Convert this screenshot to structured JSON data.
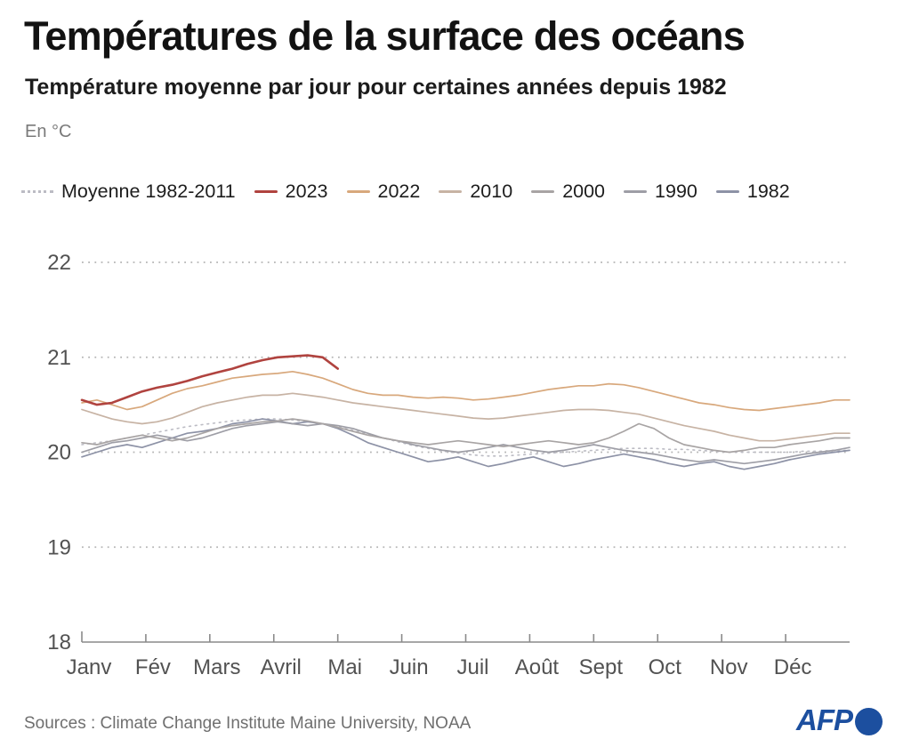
{
  "header": {
    "title": "Températures de la surface des océans",
    "subtitle": "Température moyenne par jour pour certaines années depuis 1982",
    "unit": "En °C"
  },
  "footer": {
    "sources": "Sources : Climate Change Institute Maine University, NOAA",
    "brand": "AFP"
  },
  "colors": {
    "accent_2023": "#b0433f",
    "afp_blue": "#1c4f9f",
    "grid": "#b5b5b5",
    "axis": "#8a8a8a",
    "axis_text": "#525252"
  },
  "chart_data": {
    "type": "line",
    "title": "Températures de la surface des océans",
    "unit": "°C",
    "grid": "dotted horizontal lines at 19, 20, 21, 22",
    "legend_position": "top",
    "x_axis": {
      "labels": [
        "Janv",
        "Fév",
        "Mars",
        "Avril",
        "Mai",
        "Juin",
        "Juil",
        "Août",
        "Sept",
        "Oct",
        "Nov",
        "Déc"
      ],
      "range_days": 365
    },
    "y_axis": {
      "ticks": [
        18,
        19,
        20,
        21,
        22
      ],
      "min": 18,
      "max": 22
    },
    "sampling": "weekly values, January through December",
    "series": [
      {
        "name": "Moyenne 1982-2011",
        "style": "dotted",
        "color": "#bcbcc4",
        "width": 1.6,
        "z": 0,
        "values": [
          20.08,
          20.1,
          20.12,
          20.15,
          20.18,
          20.21,
          20.24,
          20.27,
          20.29,
          20.31,
          20.33,
          20.34,
          20.35,
          20.35,
          20.34,
          20.32,
          20.3,
          20.27,
          20.23,
          20.19,
          20.15,
          20.11,
          20.07,
          20.04,
          20.01,
          19.99,
          19.97,
          19.96,
          19.96,
          19.97,
          19.98,
          19.99,
          20.0,
          20.01,
          20.02,
          20.03,
          20.04,
          20.04,
          20.04,
          20.03,
          20.03,
          20.02,
          20.01,
          20.0,
          20.0,
          20.0,
          20.0,
          20.0,
          20.01,
          20.01,
          20.02,
          20.02
        ]
      },
      {
        "name": "2023",
        "style": "solid",
        "color": "#b0433f",
        "width": 2.6,
        "z": 6,
        "values": [
          20.55,
          20.5,
          20.52,
          20.58,
          20.64,
          20.68,
          20.71,
          20.75,
          20.8,
          20.84,
          20.88,
          20.93,
          20.97,
          21.0,
          21.01,
          21.02,
          21.0,
          20.88
        ]
      },
      {
        "name": "2022",
        "style": "solid",
        "color": "#d8a87c",
        "width": 1.7,
        "z": 5,
        "values": [
          20.52,
          20.55,
          20.5,
          20.45,
          20.48,
          20.55,
          20.62,
          20.67,
          20.7,
          20.74,
          20.78,
          20.8,
          20.82,
          20.83,
          20.85,
          20.82,
          20.78,
          20.72,
          20.66,
          20.62,
          20.6,
          20.6,
          20.58,
          20.57,
          20.58,
          20.57,
          20.55,
          20.56,
          20.58,
          20.6,
          20.63,
          20.66,
          20.68,
          20.7,
          20.7,
          20.72,
          20.71,
          20.68,
          20.64,
          20.6,
          20.56,
          20.52,
          20.5,
          20.47,
          20.45,
          20.44,
          20.46,
          20.48,
          20.5,
          20.52,
          20.55,
          20.55
        ]
      },
      {
        "name": "2010",
        "style": "solid",
        "color": "#c7b3a4",
        "width": 1.7,
        "z": 4,
        "values": [
          20.45,
          20.4,
          20.35,
          20.32,
          20.3,
          20.32,
          20.36,
          20.42,
          20.48,
          20.52,
          20.55,
          20.58,
          20.6,
          20.6,
          20.62,
          20.6,
          20.58,
          20.55,
          20.52,
          20.5,
          20.48,
          20.46,
          20.44,
          20.42,
          20.4,
          20.38,
          20.36,
          20.35,
          20.36,
          20.38,
          20.4,
          20.42,
          20.44,
          20.45,
          20.45,
          20.44,
          20.42,
          20.4,
          20.36,
          20.32,
          20.28,
          20.25,
          20.22,
          20.18,
          20.15,
          20.12,
          20.12,
          20.14,
          20.16,
          20.18,
          20.2,
          20.2
        ]
      },
      {
        "name": "2000",
        "style": "solid",
        "color": "#a8a4a4",
        "width": 1.7,
        "z": 3,
        "values": [
          20.1,
          20.08,
          20.12,
          20.15,
          20.18,
          20.15,
          20.12,
          20.15,
          20.2,
          20.25,
          20.28,
          20.3,
          20.32,
          20.33,
          20.35,
          20.33,
          20.3,
          20.26,
          20.22,
          20.18,
          20.15,
          20.12,
          20.1,
          20.08,
          20.1,
          20.12,
          20.1,
          20.08,
          20.06,
          20.08,
          20.1,
          20.12,
          20.1,
          20.08,
          20.1,
          20.15,
          20.22,
          20.3,
          20.25,
          20.15,
          20.08,
          20.05,
          20.02,
          20.0,
          20.02,
          20.05,
          20.05,
          20.08,
          20.1,
          20.12,
          20.15,
          20.15
        ]
      },
      {
        "name": "1990",
        "style": "solid",
        "color": "#9e9ea6",
        "width": 1.7,
        "z": 2,
        "values": [
          20.0,
          20.05,
          20.1,
          20.12,
          20.15,
          20.18,
          20.15,
          20.12,
          20.15,
          20.2,
          20.25,
          20.28,
          20.3,
          20.32,
          20.3,
          20.28,
          20.3,
          20.28,
          20.25,
          20.2,
          20.15,
          20.12,
          20.08,
          20.05,
          20.02,
          20.0,
          20.02,
          20.05,
          20.08,
          20.05,
          20.02,
          20.0,
          20.02,
          20.05,
          20.08,
          20.05,
          20.02,
          20.0,
          19.98,
          19.95,
          19.92,
          19.9,
          19.92,
          19.9,
          19.88,
          19.9,
          19.92,
          19.95,
          19.98,
          20.0,
          20.02,
          20.05
        ]
      },
      {
        "name": "1982",
        "style": "solid",
        "color": "#8d92a6",
        "width": 1.7,
        "z": 1,
        "values": [
          19.95,
          20.0,
          20.05,
          20.08,
          20.05,
          20.1,
          20.15,
          20.2,
          20.22,
          20.25,
          20.3,
          20.32,
          20.35,
          20.33,
          20.3,
          20.32,
          20.3,
          20.25,
          20.18,
          20.1,
          20.05,
          20.0,
          19.95,
          19.9,
          19.92,
          19.95,
          19.9,
          19.85,
          19.88,
          19.92,
          19.95,
          19.9,
          19.85,
          19.88,
          19.92,
          19.95,
          19.98,
          19.95,
          19.92,
          19.88,
          19.85,
          19.88,
          19.9,
          19.85,
          19.82,
          19.85,
          19.88,
          19.92,
          19.95,
          19.98,
          20.0,
          20.02
        ]
      }
    ]
  }
}
